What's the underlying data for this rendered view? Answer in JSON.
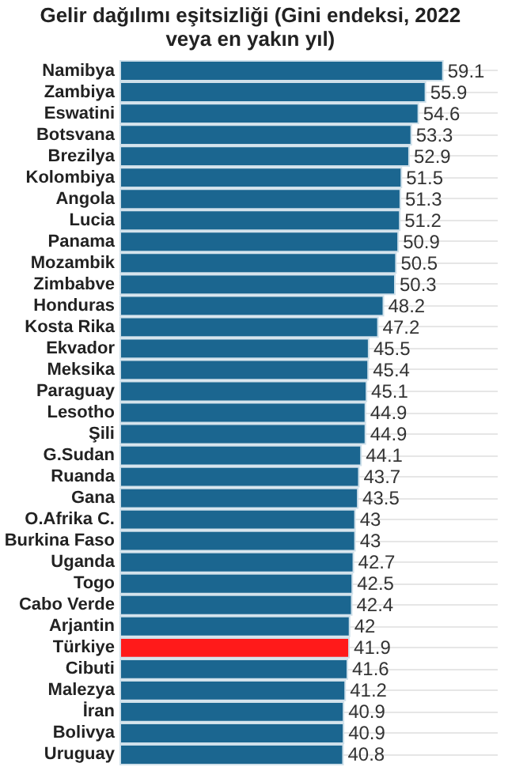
{
  "chart_data": {
    "type": "bar",
    "orientation": "horizontal",
    "title": "Gelir dağılımı eşitsizliği (Gini endeksi, 2022 veya en yakın yıl)",
    "categories": [
      "Namibya",
      "Zambiya",
      "Eswatini",
      "Botsvana",
      "Brezilya",
      "Kolombiya",
      "Angola",
      "Lucia",
      "Panama",
      "Mozambik",
      "Zimbabve",
      "Honduras",
      "Kosta Rika",
      "Ekvador",
      "Meksika",
      "Paraguay",
      "Lesotho",
      "Şili",
      "G.Sudan",
      "Ruanda",
      "Gana",
      "O.Afrika C.",
      "Burkina Faso",
      "Uganda",
      "Togo",
      "Cabo Verde",
      "Arjantin",
      "Türkiye",
      "Cibuti",
      "Malezya",
      "İran",
      "Bolivya",
      "Uruguay"
    ],
    "values": [
      59.1,
      55.9,
      54.6,
      53.3,
      52.9,
      51.5,
      51.3,
      51.2,
      50.9,
      50.5,
      50.3,
      48.2,
      47.2,
      45.5,
      45.4,
      45.1,
      44.9,
      44.9,
      44.1,
      43.7,
      43.5,
      43,
      43,
      42.7,
      42.5,
      42.4,
      42,
      41.9,
      41.6,
      41.2,
      40.9,
      40.9,
      40.8
    ],
    "colors": [
      "#1b6690",
      "#1b6690",
      "#1b6690",
      "#1b6690",
      "#1b6690",
      "#1b6690",
      "#1b6690",
      "#1b6690",
      "#1b6690",
      "#1b6690",
      "#1b6690",
      "#1b6690",
      "#1b6690",
      "#1b6690",
      "#1b6690",
      "#1b6690",
      "#1b6690",
      "#1b6690",
      "#1b6690",
      "#1b6690",
      "#1b6690",
      "#1b6690",
      "#1b6690",
      "#1b6690",
      "#1b6690",
      "#1b6690",
      "#1b6690",
      "#ff1a1a",
      "#1b6690",
      "#1b6690",
      "#1b6690",
      "#1b6690",
      "#1b6690"
    ],
    "xlim": [
      0,
      69
    ],
    "data_labels": true,
    "grid": "y"
  }
}
